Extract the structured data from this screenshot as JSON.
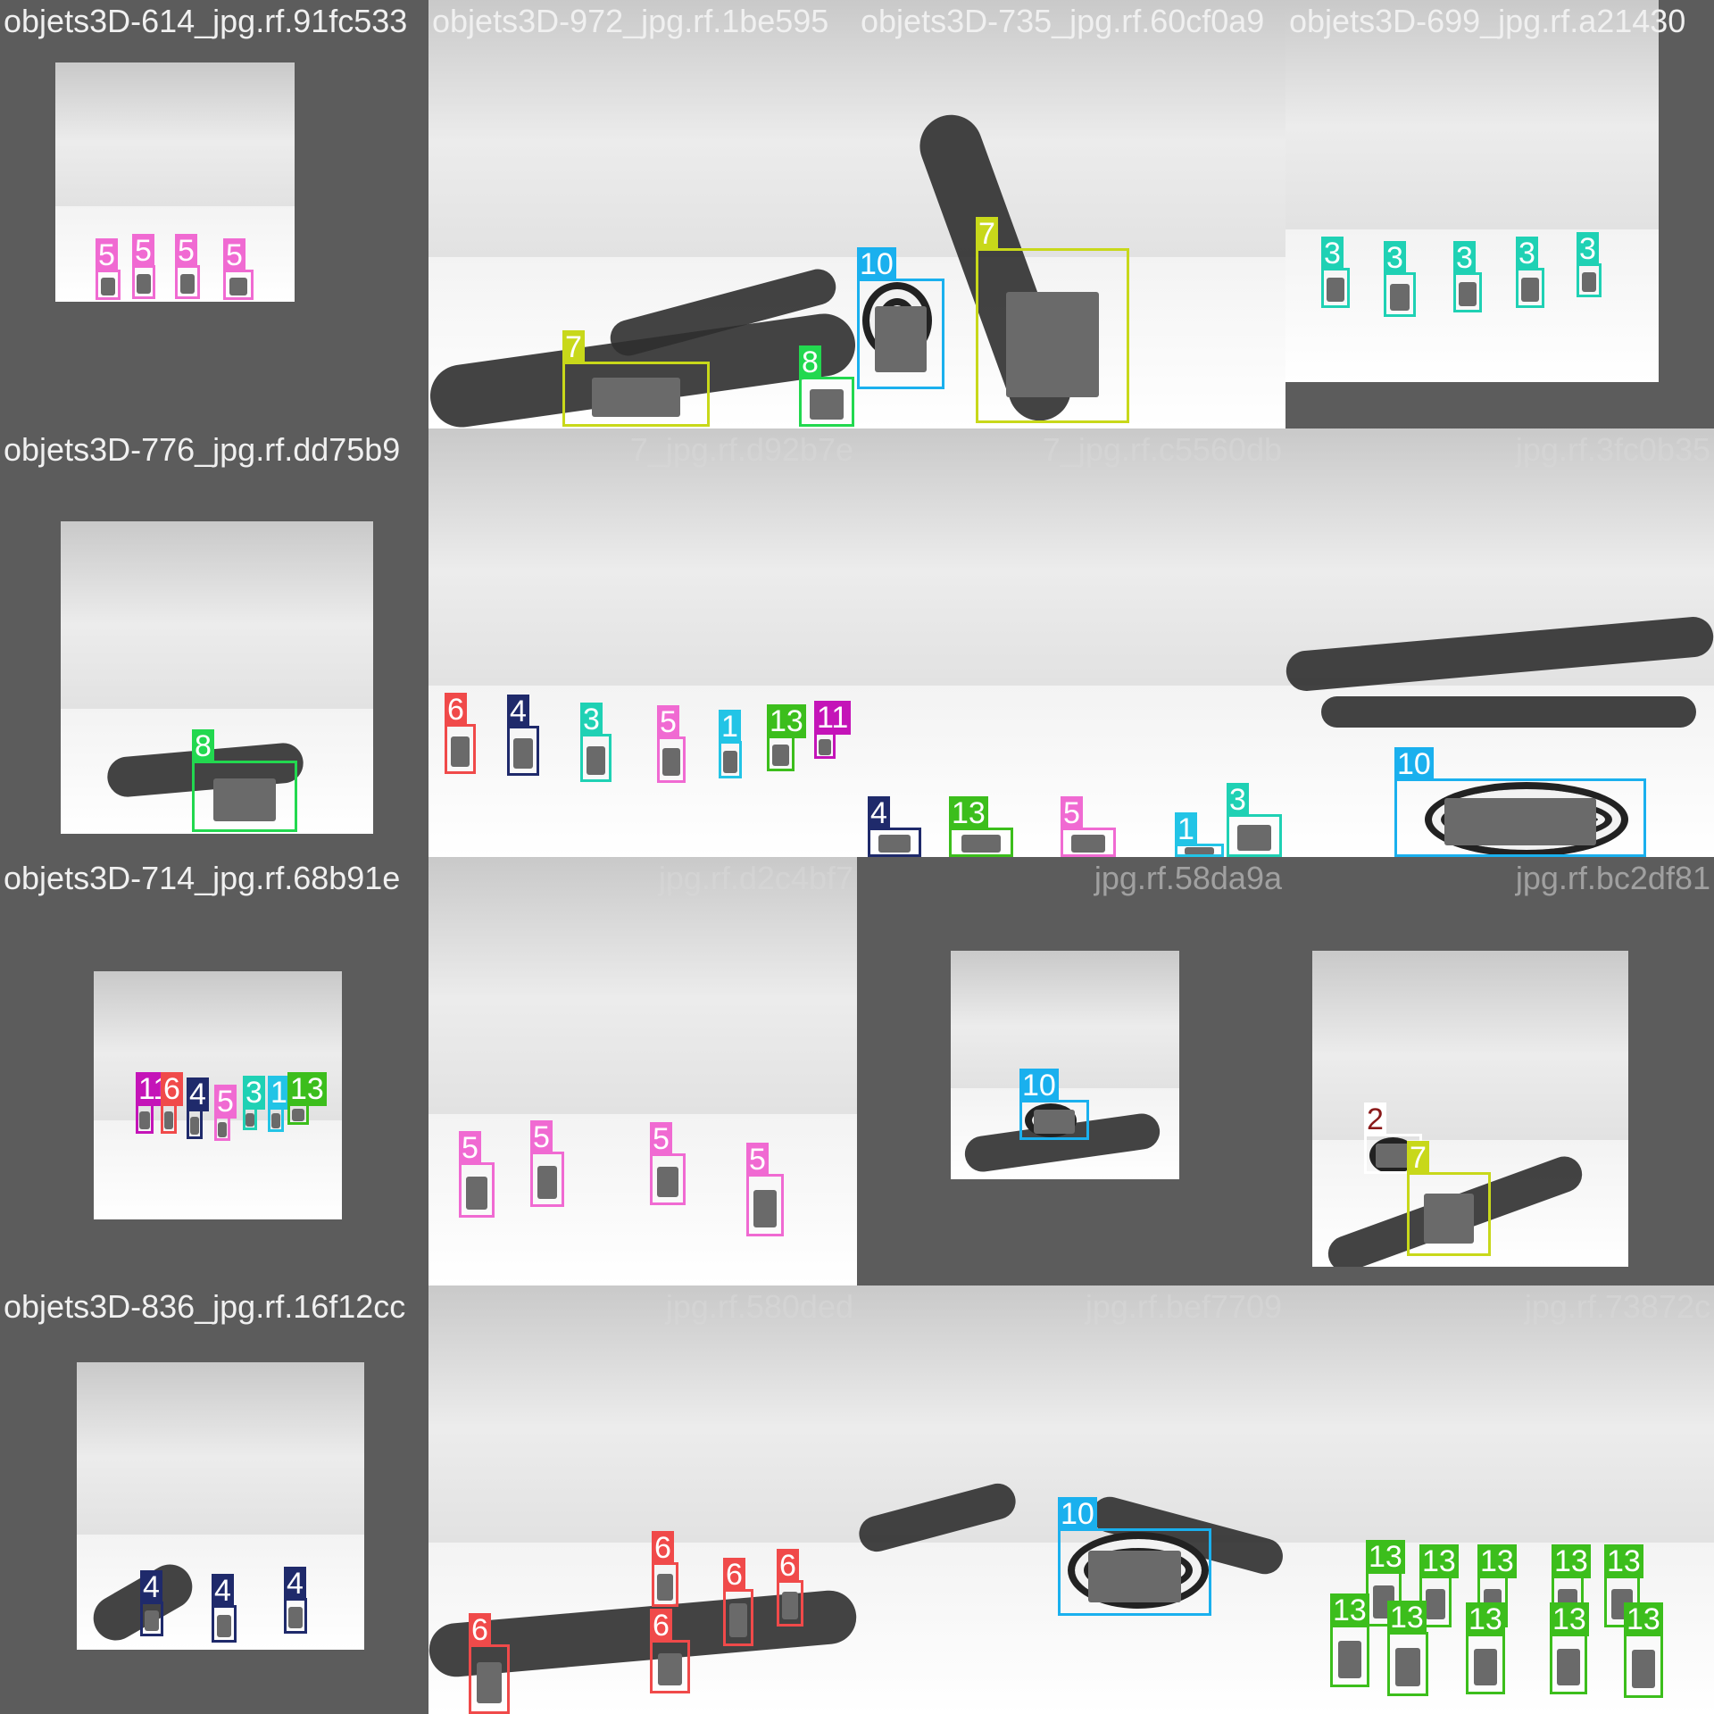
{
  "class_colors": {
    "1": "#22c4e6",
    "2": "#ffffff",
    "3": "#1fd1b4",
    "4": "#1f2a6b",
    "5": "#f06ad2",
    "6": "#f04a4a",
    "7": "#c8d81a",
    "8": "#22d84f",
    "10": "#1ab0ee",
    "11": "#c414b8",
    "13": "#3cbe1c"
  },
  "tiles": [
    {
      "title": "objets3D-614_jpg.rf.91fc533",
      "ghost": "",
      "boxes": [
        {
          "label": "5"
        },
        {
          "label": "5"
        },
        {
          "label": "5"
        },
        {
          "label": "5"
        }
      ]
    },
    {
      "title": "objets3D-972_jpg.rf.1be595",
      "ghost": "",
      "boxes": [
        {
          "label": "7"
        },
        {
          "label": "8"
        }
      ]
    },
    {
      "title": "objets3D-735_jpg.rf.60cf0a9",
      "ghost": "",
      "boxes": [
        {
          "label": "10"
        },
        {
          "label": "7"
        }
      ]
    },
    {
      "title": "objets3D-699_jpg.rf.a21430",
      "ghost": "",
      "boxes": [
        {
          "label": "3"
        },
        {
          "label": "3"
        },
        {
          "label": "3"
        },
        {
          "label": "3"
        },
        {
          "label": "3"
        }
      ]
    },
    {
      "title": "objets3D-776_jpg.rf.dd75b9",
      "ghost": "",
      "boxes": [
        {
          "label": "8"
        }
      ]
    },
    {
      "title": "",
      "ghost": "7_jpg.rf.d92b7e",
      "boxes": [
        {
          "label": "6"
        },
        {
          "label": "4"
        },
        {
          "label": "3"
        },
        {
          "label": "5"
        },
        {
          "label": "1"
        },
        {
          "label": "13"
        },
        {
          "label": "11"
        }
      ]
    },
    {
      "title": "",
      "ghost": "7_jpg.rf.c5560db",
      "boxes": [
        {
          "label": "4"
        },
        {
          "label": "13"
        },
        {
          "label": "5"
        },
        {
          "label": "1"
        },
        {
          "label": "3"
        }
      ]
    },
    {
      "title": "",
      "ghost": "jpg.rf.3fc0b35",
      "boxes": [
        {
          "label": "10"
        }
      ]
    },
    {
      "title": "objets3D-714_jpg.rf.68b91e",
      "ghost": "",
      "boxes": [
        {
          "label": "11"
        },
        {
          "label": "6"
        },
        {
          "label": "4"
        },
        {
          "label": "5"
        },
        {
          "label": "3"
        },
        {
          "label": "1"
        },
        {
          "label": "13"
        }
      ]
    },
    {
      "title": "",
      "ghost": "jpg.rf.d2c4bf7",
      "boxes": [
        {
          "label": "5"
        },
        {
          "label": "5"
        },
        {
          "label": "5"
        },
        {
          "label": "5"
        }
      ]
    },
    {
      "title": "",
      "ghost": "jpg.rf.58da9a",
      "boxes": [
        {
          "label": "10"
        }
      ]
    },
    {
      "title": "",
      "ghost": "jpg.rf.bc2df81",
      "boxes": [
        {
          "label": "2"
        },
        {
          "label": "7"
        }
      ]
    },
    {
      "title": "objets3D-836_jpg.rf.16f12cc",
      "ghost": "",
      "boxes": [
        {
          "label": "4"
        },
        {
          "label": "4"
        },
        {
          "label": "4"
        }
      ]
    },
    {
      "title": "",
      "ghost": "jpg.rf.580ded",
      "boxes": [
        {
          "label": "6"
        },
        {
          "label": "6"
        },
        {
          "label": "6"
        },
        {
          "label": "6"
        },
        {
          "label": "6"
        }
      ]
    },
    {
      "title": "",
      "ghost": "jpg.rf.bef7709",
      "boxes": [
        {
          "label": "10"
        }
      ]
    },
    {
      "title": "",
      "ghost": "jpg.rf.73872c",
      "boxes": [
        {
          "label": "13"
        },
        {
          "label": "13"
        },
        {
          "label": "13"
        },
        {
          "label": "13"
        },
        {
          "label": "13"
        },
        {
          "label": "13"
        },
        {
          "label": "13"
        },
        {
          "label": "13"
        },
        {
          "label": "13"
        },
        {
          "label": "13"
        }
      ]
    }
  ]
}
